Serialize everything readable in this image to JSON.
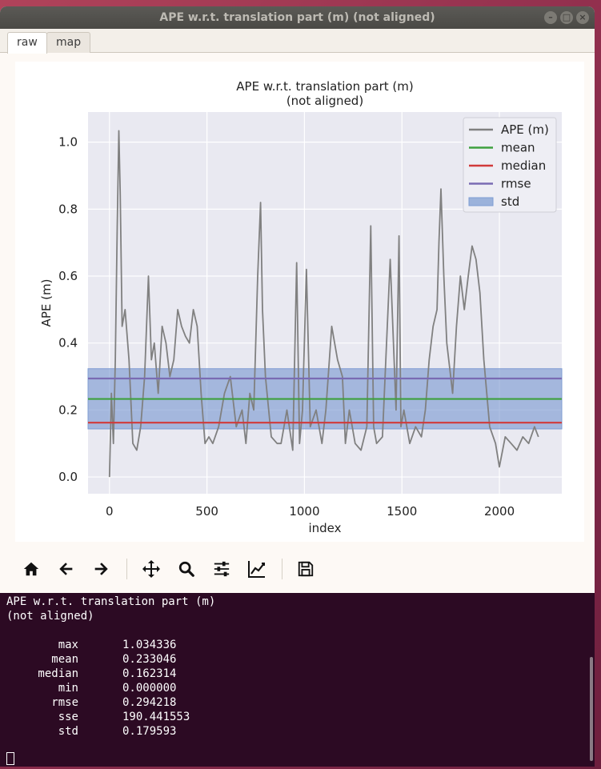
{
  "window": {
    "title": "APE w.r.t. translation part (m) (not aligned)",
    "buttons": [
      "minimize",
      "maximize",
      "close"
    ]
  },
  "tabs": [
    {
      "label": "raw",
      "active": true
    },
    {
      "label": "map",
      "active": false
    }
  ],
  "chart_data": {
    "type": "line",
    "title": "APE w.r.t. translation part (m)\n(not aligned)",
    "title_lines": [
      "APE w.r.t. translation part (m)",
      "(not aligned)"
    ],
    "xlabel": "index",
    "ylabel": "APE (m)",
    "xlim": [
      -110,
      2320
    ],
    "ylim": [
      -0.05,
      1.09
    ],
    "xticks": [
      0,
      500,
      1000,
      1500,
      2000
    ],
    "yticks": [
      0.0,
      0.2,
      0.4,
      0.6,
      0.8,
      1.0
    ],
    "grid": true,
    "legend_position": "top-right",
    "colors": {
      "ape": "#808080",
      "mean": "#3ea03e",
      "median": "#d13a3a",
      "rmse": "#7a6bb3",
      "std": "#7f9dd3",
      "background": "#e9e9f1"
    },
    "series": [
      {
        "name": "APE (m)",
        "x": [
          0,
          10,
          20,
          30,
          40,
          48,
          55,
          65,
          80,
          100,
          120,
          140,
          160,
          180,
          200,
          215,
          230,
          250,
          270,
          290,
          310,
          330,
          350,
          370,
          390,
          410,
          430,
          450,
          470,
          490,
          510,
          530,
          560,
          590,
          620,
          650,
          680,
          700,
          720,
          740,
          760,
          775,
          785,
          800,
          830,
          860,
          880,
          910,
          940,
          960,
          975,
          990,
          1010,
          1030,
          1060,
          1090,
          1110,
          1140,
          1170,
          1195,
          1210,
          1230,
          1260,
          1290,
          1320,
          1340,
          1355,
          1370,
          1400,
          1440,
          1470,
          1485,
          1495,
          1510,
          1540,
          1570,
          1600,
          1620,
          1640,
          1660,
          1680,
          1690,
          1700,
          1715,
          1730,
          1760,
          1780,
          1800,
          1820,
          1840,
          1860,
          1880,
          1900,
          1920,
          1950,
          1980,
          2000,
          2030,
          2060,
          2090,
          2120,
          2150,
          2180,
          2200
        ],
        "y": [
          0.0,
          0.25,
          0.1,
          0.35,
          0.75,
          1.034,
          0.85,
          0.45,
          0.5,
          0.35,
          0.1,
          0.08,
          0.15,
          0.3,
          0.6,
          0.35,
          0.4,
          0.25,
          0.45,
          0.4,
          0.3,
          0.35,
          0.5,
          0.45,
          0.42,
          0.4,
          0.5,
          0.45,
          0.25,
          0.1,
          0.12,
          0.1,
          0.15,
          0.25,
          0.3,
          0.15,
          0.2,
          0.1,
          0.25,
          0.2,
          0.6,
          0.82,
          0.5,
          0.3,
          0.12,
          0.1,
          0.1,
          0.2,
          0.08,
          0.64,
          0.1,
          0.2,
          0.62,
          0.15,
          0.2,
          0.1,
          0.2,
          0.45,
          0.35,
          0.3,
          0.1,
          0.2,
          0.1,
          0.08,
          0.15,
          0.75,
          0.15,
          0.1,
          0.12,
          0.65,
          0.2,
          0.72,
          0.15,
          0.2,
          0.1,
          0.15,
          0.12,
          0.2,
          0.35,
          0.45,
          0.5,
          0.7,
          0.86,
          0.6,
          0.4,
          0.25,
          0.45,
          0.6,
          0.5,
          0.6,
          0.69,
          0.65,
          0.55,
          0.35,
          0.15,
          0.1,
          0.03,
          0.12,
          0.1,
          0.08,
          0.12,
          0.1,
          0.15,
          0.12
        ]
      },
      {
        "name": "mean",
        "value": 0.233046
      },
      {
        "name": "median",
        "value": 0.162314
      },
      {
        "name": "rmse",
        "value": 0.294218
      },
      {
        "name": "std",
        "range": [
          0.143625,
          0.323467
        ]
      }
    ]
  },
  "toolbar": [
    {
      "icon": "home-icon",
      "name": "home-button"
    },
    {
      "icon": "back-arrow-icon",
      "name": "back-button"
    },
    {
      "icon": "forward-arrow-icon",
      "name": "forward-button"
    },
    {
      "icon": "pan-icon",
      "name": "pan-button"
    },
    {
      "icon": "zoom-icon",
      "name": "zoom-button"
    },
    {
      "icon": "subplots-icon",
      "name": "configure-subplots-button"
    },
    {
      "icon": "edit-axes-icon",
      "name": "edit-axes-button"
    },
    {
      "icon": "save-icon",
      "name": "save-button"
    }
  ],
  "terminal": {
    "header_lines": [
      "APE w.r.t. translation part (m)",
      "(not aligned)"
    ],
    "stats": [
      {
        "key": "max",
        "value": "1.034336"
      },
      {
        "key": "mean",
        "value": "0.233046"
      },
      {
        "key": "median",
        "value": "0.162314"
      },
      {
        "key": "min",
        "value": "0.000000"
      },
      {
        "key": "rmse",
        "value": "0.294218"
      },
      {
        "key": "sse",
        "value": "190.441553"
      },
      {
        "key": "std",
        "value": "0.179593"
      }
    ]
  }
}
